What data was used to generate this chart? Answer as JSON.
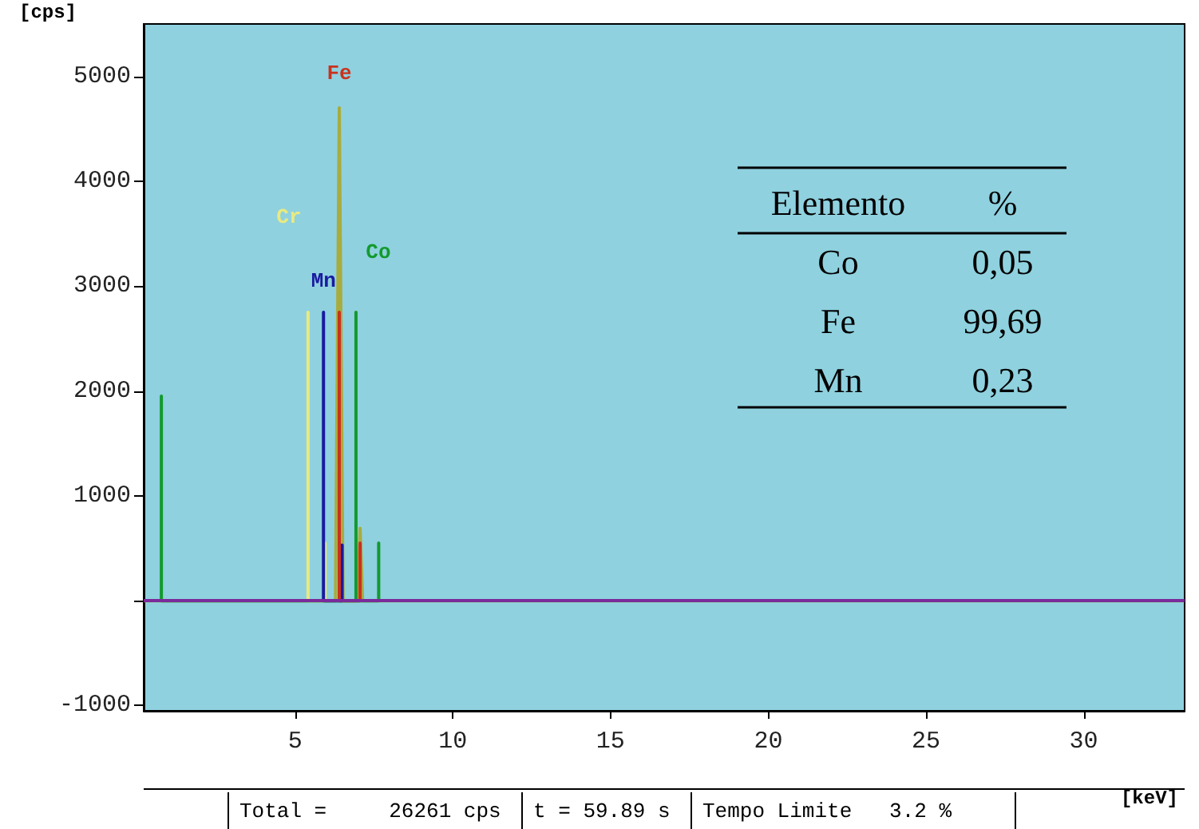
{
  "chart_data": {
    "type": "line",
    "xlabel": "[keV]",
    "ylabel": "[cps]",
    "xlim": [
      0.2,
      33.2
    ],
    "xticks": [
      5,
      10,
      15,
      20,
      25,
      30
    ],
    "ylim": [
      -1050,
      5500
    ],
    "yticks": [
      -1000,
      {
        "value": 0,
        "label": null
      },
      1000,
      2000,
      3000,
      4000,
      5000
    ],
    "grid": false,
    "legend": false,
    "marker": "none",
    "line_style": "solid",
    "series": [
      {
        "color": "#a8ac3e",
        "x": [
          0.2,
          6.28,
          6.4,
          6.52,
          6.98,
          7.06,
          7.14,
          33.2
        ],
        "values": [
          0,
          0,
          4700,
          0,
          0,
          690,
          0,
          0
        ]
      },
      {
        "name": "Cr",
        "color": "#eaea80",
        "x": [
          5.41,
          5.41,
          5.41,
          5.95,
          5.95,
          5.95
        ],
        "values": [
          0,
          2750,
          0,
          0,
          550,
          0
        ]
      },
      {
        "name": "Mn",
        "color": "#1a1aa0",
        "x": [
          5.9,
          5.9,
          5.9,
          6.49,
          6.49,
          6.49
        ],
        "values": [
          0,
          2750,
          0,
          0,
          530,
          0
        ]
      },
      {
        "name": "Fe",
        "color": "#c8321e",
        "x": [
          6.4,
          6.4,
          6.4,
          7.06,
          7.06,
          7.06
        ],
        "values": [
          0,
          2750,
          0,
          0,
          550,
          0
        ]
      },
      {
        "name": "Co",
        "color": "#139a2e",
        "x": [
          0.76,
          0.76,
          0.76,
          6.93,
          6.93,
          6.93,
          7.65,
          7.65,
          7.65
        ],
        "values": [
          0,
          1950,
          0,
          0,
          2750,
          0,
          0,
          550,
          0
        ]
      }
    ],
    "ref_lines": [
      {
        "axis": "y",
        "value": 0,
        "color": "#7a2a9a"
      }
    ],
    "annotations": [
      "Elemento",
      "%",
      "Co",
      "0,05",
      "Fe",
      "99,69",
      "Mn",
      "0,23",
      "Total =     26261 cps",
      "t = 59.89 s",
      "Tempo Limite   3.2 %"
    ]
  }
}
